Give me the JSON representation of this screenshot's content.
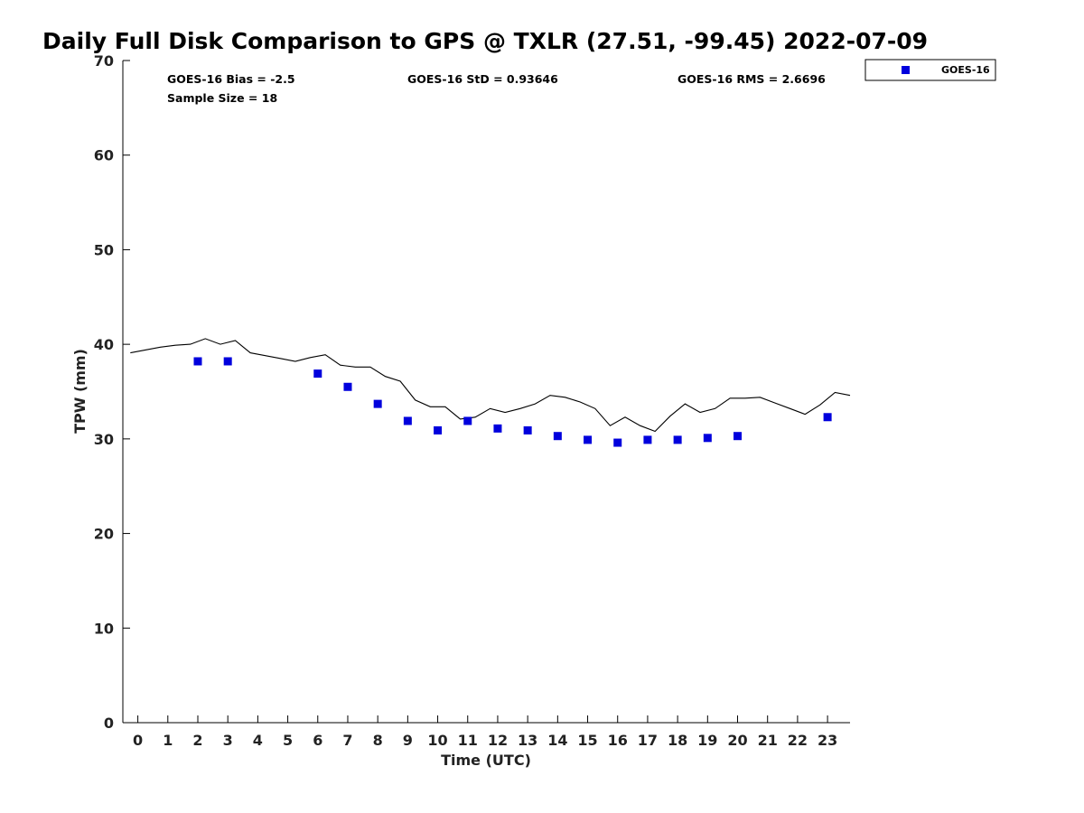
{
  "chart_data": {
    "type": "scatter",
    "title": "Daily Full Disk Comparison to GPS @ TXLR (27.51, -99.45) 2022-07-09",
    "xlabel": "Time (UTC)",
    "ylabel": "TPW (mm)",
    "xlim": [
      -0.5,
      23.75
    ],
    "ylim": [
      0,
      70
    ],
    "x_ticks": [
      0,
      1,
      2,
      3,
      4,
      5,
      6,
      7,
      8,
      9,
      10,
      11,
      12,
      13,
      14,
      15,
      16,
      17,
      18,
      19,
      20,
      21,
      22,
      23
    ],
    "y_ticks": [
      0,
      10,
      20,
      30,
      40,
      50,
      60,
      70
    ],
    "grid": false,
    "legend_position": "top-right, outside plot",
    "stats": {
      "bias": "GOES-16 Bias = -2.5",
      "std": "GOES-16 StD = 0.93646",
      "rms": "GOES-16 RMS = 2.6696",
      "sample_size": "Sample Size = 18"
    },
    "series": [
      {
        "name": "GOES-16",
        "marker": "square",
        "color": "#0000dd",
        "x": [
          2,
          3,
          6,
          7,
          8,
          9,
          10,
          11,
          12,
          13,
          14,
          15,
          16,
          17,
          18,
          19,
          20,
          23
        ],
        "y": [
          38.2,
          38.2,
          36.9,
          35.5,
          33.7,
          31.9,
          30.9,
          31.9,
          31.1,
          30.9,
          30.3,
          29.9,
          29.6,
          29.9,
          29.9,
          30.1,
          30.3,
          32.3
        ]
      },
      {
        "marker": "line",
        "color": "#000000",
        "x": [
          -0.25,
          0.25,
          0.75,
          1.25,
          1.75,
          2.25,
          2.75,
          3.25,
          3.75,
          4.25,
          4.75,
          5.25,
          5.75,
          6.25,
          6.75,
          7.25,
          7.75,
          8.25,
          8.75,
          9.25,
          9.75,
          10.25,
          10.75,
          11.25,
          11.75,
          12.25,
          12.75,
          13.25,
          13.75,
          14.25,
          14.75,
          15.25,
          15.75,
          16.25,
          16.75,
          17.25,
          17.75,
          18.25,
          18.75,
          19.25,
          19.75,
          20.25,
          20.75,
          21.25,
          21.75,
          22.25,
          22.75,
          23.25,
          23.75
        ],
        "y": [
          39.1,
          39.4,
          39.7,
          39.9,
          40.0,
          40.6,
          40.0,
          40.4,
          39.1,
          38.8,
          38.5,
          38.2,
          38.6,
          38.9,
          37.8,
          37.6,
          37.6,
          36.6,
          36.1,
          34.1,
          33.4,
          33.4,
          32.1,
          32.3,
          33.2,
          32.8,
          33.2,
          33.7,
          34.6,
          34.4,
          33.9,
          33.2,
          31.4,
          32.3,
          31.4,
          30.8,
          32.4,
          33.7,
          32.8,
          33.2,
          34.3,
          34.3,
          34.4,
          33.8,
          33.2,
          32.6,
          33.6,
          34.9,
          34.6
        ]
      }
    ]
  }
}
